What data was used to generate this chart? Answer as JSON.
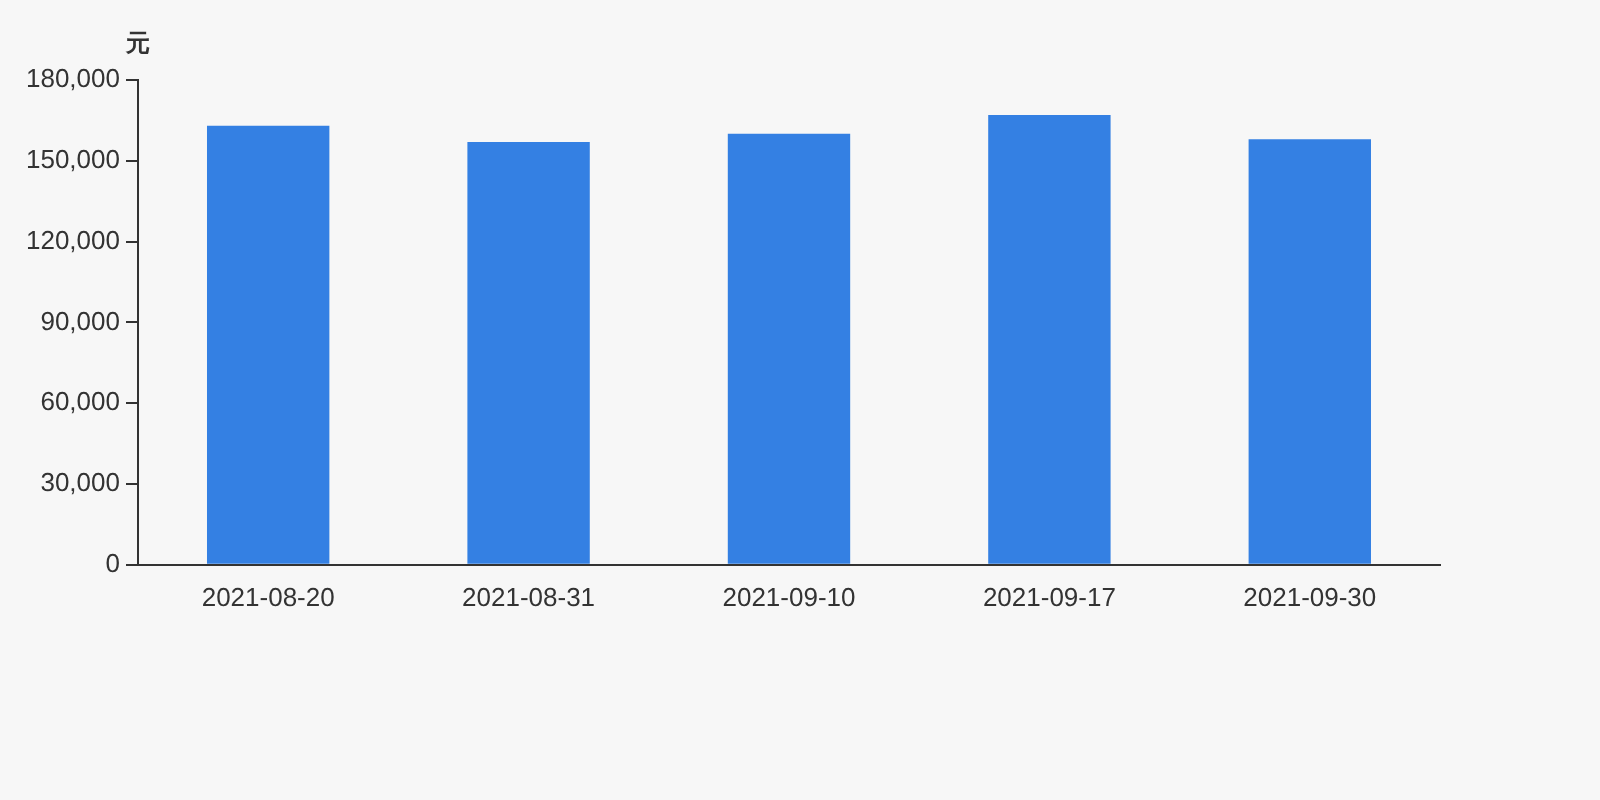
{
  "chart_data": {
    "type": "bar",
    "ylabel": "元",
    "categories": [
      "2021-08-20",
      "2021-08-31",
      "2021-09-10",
      "2021-09-17",
      "2021-09-30"
    ],
    "values": [
      163000,
      157000,
      160000,
      167000,
      158000
    ],
    "color": "#3480e3",
    "ylim": [
      0,
      180000
    ],
    "yticks": [
      0,
      {
        "value": 30000,
        "label": "30,000"
      },
      {
        "value": 60000,
        "label": "60,000"
      },
      {
        "value": 90000,
        "label": "90,000"
      },
      {
        "value": 120000,
        "label": "120,000"
      },
      {
        "value": 150000,
        "label": "150,000"
      },
      {
        "value": 180000,
        "label": "180,000"
      }
    ],
    "grid": false,
    "legend": false
  }
}
